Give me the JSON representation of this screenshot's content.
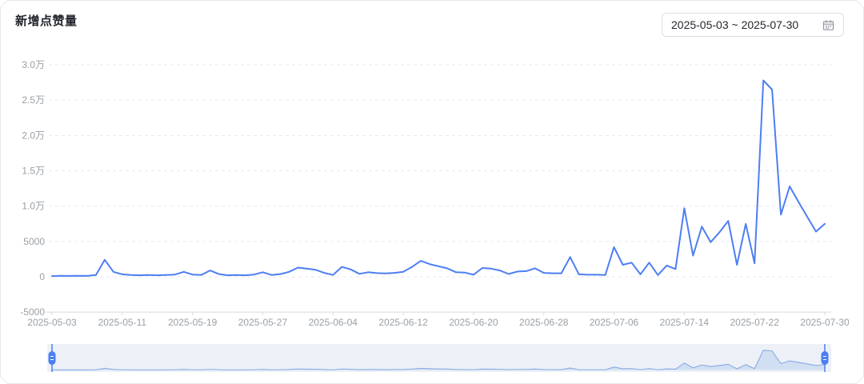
{
  "header": {
    "title": "新增点赞量",
    "date_range": {
      "start": "2025-05-03",
      "end": "2025-07-30",
      "display": "2025-05-03 ~ 2025-07-30"
    }
  },
  "colors": {
    "line": "#4D7EF3",
    "slider_track": "#EDF1F7",
    "slider_area": "#BCCFEF",
    "slider_line": "#8FAFE6",
    "grid": "#E8EAED",
    "axis": "#D8DADD",
    "tick_text": "#9AA0A6",
    "title_text": "#1F2329",
    "border": "#E5E7EA"
  },
  "chart_data": {
    "type": "line",
    "title": "新增点赞量",
    "series_name": "新增点赞量",
    "legend": "none",
    "grid": "horizontal-dashed",
    "ylim": [
      -5000,
      30000
    ],
    "line_color": "#4D7EF3",
    "has_datazoom_slider": true,
    "y_ticks": [
      {
        "label": "3.0万",
        "value": 30000
      },
      {
        "label": "2.5万",
        "value": 25000
      },
      {
        "label": "2.0万",
        "value": 20000
      },
      {
        "label": "1.5万",
        "value": 15000
      },
      {
        "label": "1.0万",
        "value": 10000
      },
      {
        "label": "5000",
        "value": 5000
      },
      {
        "label": "0",
        "value": 0
      },
      {
        "label": "-5000",
        "value": -5000
      }
    ],
    "x_tick_interval_days": 8,
    "x_tick_labels": [
      "2025-05-03",
      "2025-05-11",
      "2025-05-19",
      "2025-05-27",
      "2025-06-04",
      "2025-06-12",
      "2025-06-20",
      "2025-06-28",
      "2025-07-06",
      "2025-07-14",
      "2025-07-22",
      "2025-07-30"
    ],
    "x": [
      "2025-05-03",
      "2025-05-04",
      "2025-05-05",
      "2025-05-06",
      "2025-05-07",
      "2025-05-08",
      "2025-05-09",
      "2025-05-10",
      "2025-05-11",
      "2025-05-12",
      "2025-05-13",
      "2025-05-14",
      "2025-05-15",
      "2025-05-16",
      "2025-05-17",
      "2025-05-18",
      "2025-05-19",
      "2025-05-20",
      "2025-05-21",
      "2025-05-22",
      "2025-05-23",
      "2025-05-24",
      "2025-05-25",
      "2025-05-26",
      "2025-05-27",
      "2025-05-28",
      "2025-05-29",
      "2025-05-30",
      "2025-05-31",
      "2025-06-01",
      "2025-06-02",
      "2025-06-03",
      "2025-06-04",
      "2025-06-05",
      "2025-06-06",
      "2025-06-07",
      "2025-06-08",
      "2025-06-09",
      "2025-06-10",
      "2025-06-11",
      "2025-06-12",
      "2025-06-13",
      "2025-06-14",
      "2025-06-15",
      "2025-06-16",
      "2025-06-17",
      "2025-06-18",
      "2025-06-19",
      "2025-06-20",
      "2025-06-21",
      "2025-06-22",
      "2025-06-23",
      "2025-06-24",
      "2025-06-25",
      "2025-06-26",
      "2025-06-27",
      "2025-06-28",
      "2025-06-29",
      "2025-06-30",
      "2025-07-01",
      "2025-07-02",
      "2025-07-03",
      "2025-07-04",
      "2025-07-05",
      "2025-07-06",
      "2025-07-07",
      "2025-07-08",
      "2025-07-09",
      "2025-07-10",
      "2025-07-11",
      "2025-07-12",
      "2025-07-13",
      "2025-07-14",
      "2025-07-15",
      "2025-07-16",
      "2025-07-17",
      "2025-07-18",
      "2025-07-19",
      "2025-07-20",
      "2025-07-21",
      "2025-07-22",
      "2025-07-23",
      "2025-07-24",
      "2025-07-25",
      "2025-07-26",
      "2025-07-27",
      "2025-07-28",
      "2025-07-29",
      "2025-07-30"
    ],
    "values": [
      100,
      150,
      120,
      150,
      130,
      250,
      2400,
      700,
      350,
      250,
      220,
      260,
      220,
      260,
      320,
      700,
      320,
      260,
      900,
      380,
      220,
      260,
      220,
      320,
      650,
      260,
      380,
      700,
      1300,
      1150,
      1000,
      550,
      260,
      1400,
      1050,
      420,
      650,
      520,
      480,
      550,
      700,
      1400,
      2250,
      1800,
      1500,
      1200,
      650,
      600,
      300,
      1250,
      1150,
      900,
      400,
      750,
      800,
      1200,
      550,
      500,
      500,
      2800,
      350,
      300,
      300,
      250,
      4200,
      1700,
      2000,
      350,
      2000,
      250,
      1600,
      1100,
      9700,
      3000,
      7100,
      4900,
      6300,
      7900,
      1700,
      7500,
      1900,
      27800,
      26500,
      8800,
      12800,
      10600,
      8500,
      6400,
      7500
    ]
  }
}
